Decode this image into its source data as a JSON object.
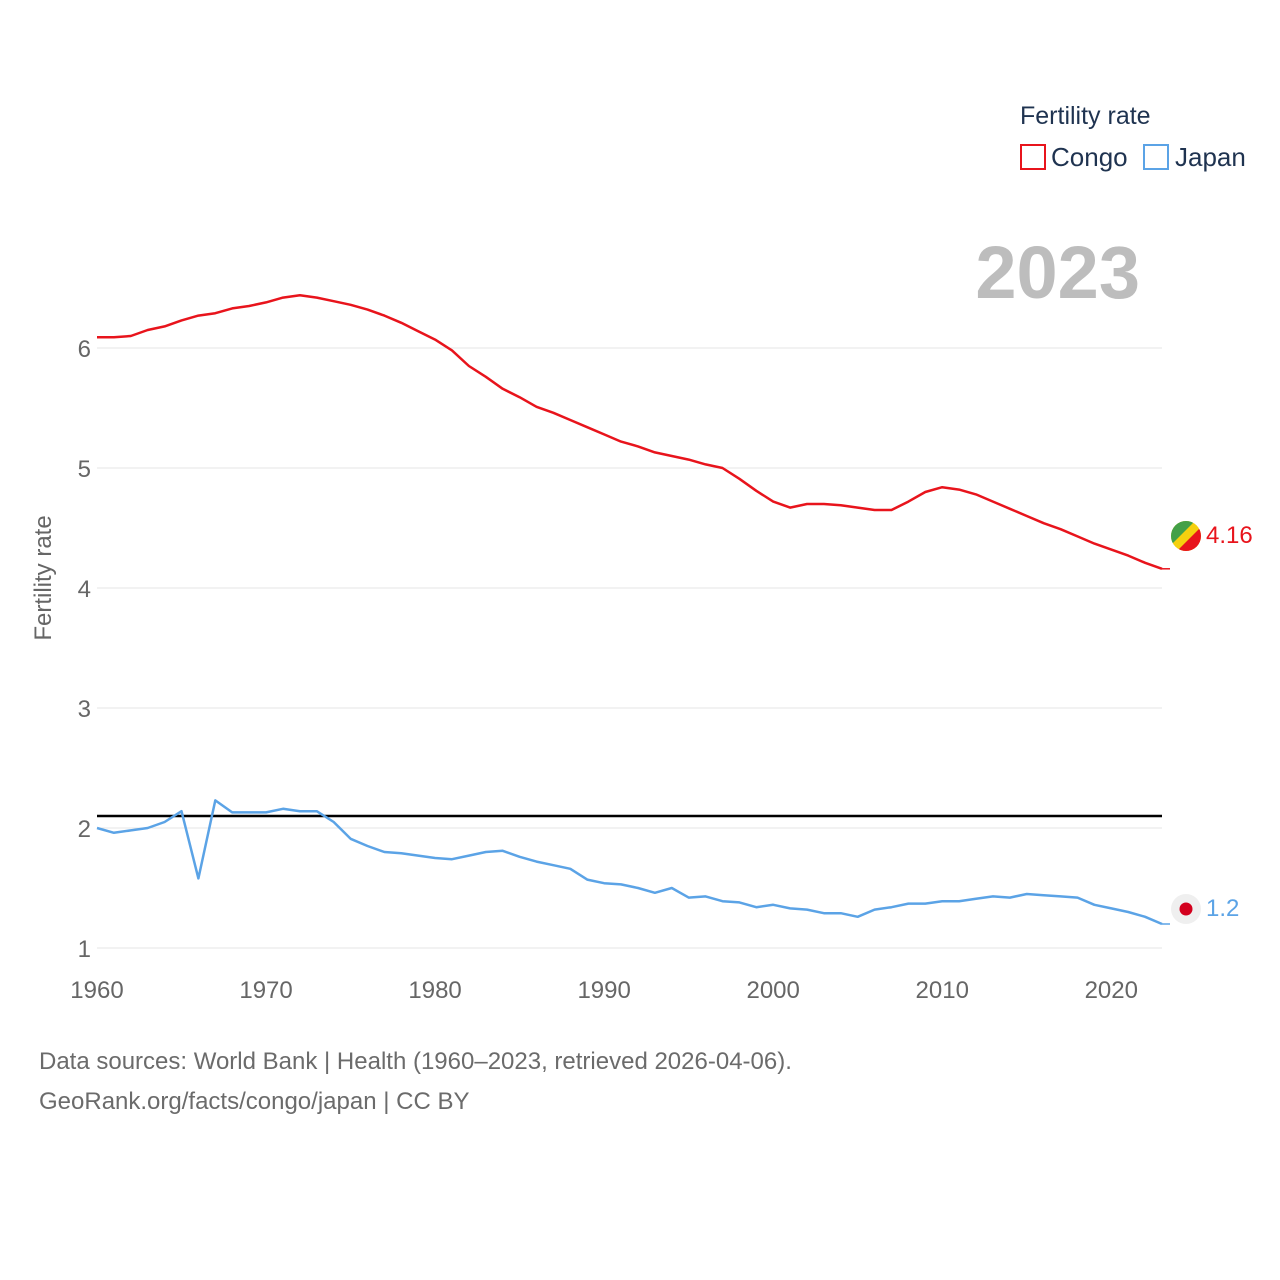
{
  "chart_data": {
    "type": "line",
    "title": "",
    "xlabel": "",
    "ylabel": "Fertility rate",
    "xlim": [
      1960,
      2023
    ],
    "ylim": [
      0.9,
      6.9
    ],
    "xticks": [
      1960,
      1970,
      1980,
      1990,
      2000,
      2010,
      2020
    ],
    "yticks": [
      1,
      2,
      3,
      4,
      5,
      6
    ],
    "year_stamp": "2023",
    "legend": {
      "title": "Fertility rate",
      "placement": "top-right"
    },
    "reference_line": {
      "y": 2.1
    },
    "x": [
      1960,
      1961,
      1962,
      1963,
      1964,
      1965,
      1966,
      1967,
      1968,
      1969,
      1970,
      1971,
      1972,
      1973,
      1974,
      1975,
      1976,
      1977,
      1978,
      1979,
      1980,
      1981,
      1982,
      1983,
      1984,
      1985,
      1986,
      1987,
      1988,
      1989,
      1990,
      1991,
      1992,
      1993,
      1994,
      1995,
      1996,
      1997,
      1998,
      1999,
      2000,
      2001,
      2002,
      2003,
      2004,
      2005,
      2006,
      2007,
      2008,
      2009,
      2010,
      2011,
      2012,
      2013,
      2014,
      2015,
      2016,
      2017,
      2018,
      2019,
      2020,
      2021,
      2022,
      2023
    ],
    "series": [
      {
        "name": "Congo",
        "color": "#e8141c",
        "end_label": "4.16",
        "values": [
          6.09,
          6.09,
          6.1,
          6.15,
          6.18,
          6.23,
          6.27,
          6.29,
          6.33,
          6.35,
          6.38,
          6.42,
          6.44,
          6.42,
          6.39,
          6.36,
          6.32,
          6.27,
          6.21,
          6.14,
          6.07,
          5.98,
          5.85,
          5.76,
          5.66,
          5.59,
          5.51,
          5.46,
          5.4,
          5.34,
          5.28,
          5.22,
          5.18,
          5.13,
          5.1,
          5.07,
          5.03,
          5.0,
          4.91,
          4.81,
          4.72,
          4.67,
          4.7,
          4.7,
          4.69,
          4.67,
          4.65,
          4.65,
          4.72,
          4.8,
          4.84,
          4.82,
          4.78,
          4.72,
          4.66,
          4.6,
          4.54,
          4.49,
          4.43,
          4.37,
          4.32,
          4.27,
          4.21,
          4.16
        ]
      },
      {
        "name": "Japan",
        "color": "#5ba3e6",
        "end_label": "1.2",
        "values": [
          2.0,
          1.96,
          1.98,
          2.0,
          2.05,
          2.14,
          1.58,
          2.23,
          2.13,
          2.13,
          2.13,
          2.16,
          2.14,
          2.14,
          2.05,
          1.91,
          1.85,
          1.8,
          1.79,
          1.77,
          1.75,
          1.74,
          1.77,
          1.8,
          1.81,
          1.76,
          1.72,
          1.69,
          1.66,
          1.57,
          1.54,
          1.53,
          1.5,
          1.46,
          1.5,
          1.42,
          1.43,
          1.39,
          1.38,
          1.34,
          1.36,
          1.33,
          1.32,
          1.29,
          1.29,
          1.26,
          1.32,
          1.34,
          1.37,
          1.37,
          1.39,
          1.39,
          1.41,
          1.43,
          1.42,
          1.45,
          1.44,
          1.43,
          1.42,
          1.36,
          1.33,
          1.3,
          1.26,
          1.2
        ]
      }
    ]
  },
  "footer": {
    "line1": "Data sources: World Bank | Health (1960–2023, retrieved 2026-04-06).",
    "line2": "GeoRank.org/facts/congo/japan | CC BY"
  }
}
